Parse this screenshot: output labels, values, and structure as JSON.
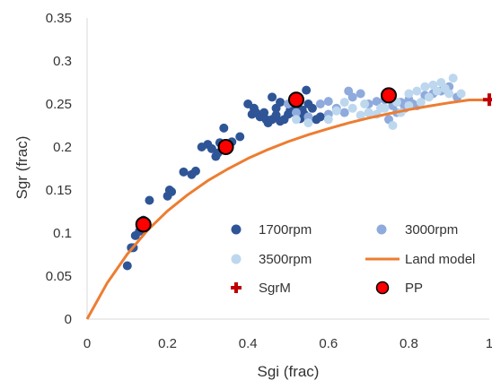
{
  "chart_data": {
    "type": "scatter",
    "xlabel": "Sgi (frac)",
    "ylabel": "Sgr (frac)",
    "xlim": [
      0,
      1
    ],
    "ylim": [
      0,
      0.35
    ],
    "x_ticks": [
      "0",
      "0.2",
      "0.4",
      "0.6",
      "0.8",
      "1"
    ],
    "y_ticks": [
      "0",
      "0.05",
      "0.1",
      "0.15",
      "0.2",
      "0.25",
      "0.3",
      "0.35"
    ],
    "grid": false,
    "legend_position": "bottom-right inside plot, two columns",
    "series": [
      {
        "name": "1700rpm",
        "type": "scatter",
        "color": "#2f5597",
        "points": [
          [
            0.1,
            0.062
          ],
          [
            0.11,
            0.083
          ],
          [
            0.115,
            0.083
          ],
          [
            0.12,
            0.097
          ],
          [
            0.13,
            0.102
          ],
          [
            0.14,
            0.115
          ],
          [
            0.155,
            0.138
          ],
          [
            0.2,
            0.143
          ],
          [
            0.21,
            0.148
          ],
          [
            0.205,
            0.15
          ],
          [
            0.24,
            0.171
          ],
          [
            0.26,
            0.168
          ],
          [
            0.27,
            0.172
          ],
          [
            0.285,
            0.2
          ],
          [
            0.3,
            0.203
          ],
          [
            0.31,
            0.198
          ],
          [
            0.32,
            0.189
          ],
          [
            0.325,
            0.193
          ],
          [
            0.33,
            0.205
          ],
          [
            0.34,
            0.222
          ],
          [
            0.36,
            0.206
          ],
          [
            0.38,
            0.212
          ],
          [
            0.4,
            0.25
          ],
          [
            0.41,
            0.238
          ],
          [
            0.415,
            0.245
          ],
          [
            0.42,
            0.24
          ],
          [
            0.43,
            0.235
          ],
          [
            0.44,
            0.24
          ],
          [
            0.445,
            0.232
          ],
          [
            0.45,
            0.228
          ],
          [
            0.46,
            0.232
          ],
          [
            0.47,
            0.237
          ],
          [
            0.48,
            0.23
          ],
          [
            0.49,
            0.232
          ],
          [
            0.5,
            0.238
          ],
          [
            0.505,
            0.243
          ],
          [
            0.515,
            0.24
          ],
          [
            0.52,
            0.245
          ],
          [
            0.53,
            0.233
          ],
          [
            0.535,
            0.243
          ],
          [
            0.54,
            0.238
          ],
          [
            0.545,
            0.266
          ],
          [
            0.55,
            0.25
          ],
          [
            0.46,
            0.258
          ],
          [
            0.48,
            0.252
          ],
          [
            0.56,
            0.245
          ],
          [
            0.57,
            0.232
          ],
          [
            0.58,
            0.235
          ],
          [
            0.47,
            0.245
          ]
        ]
      },
      {
        "name": "3000rpm",
        "type": "scatter",
        "color": "#8faadc",
        "points": [
          [
            0.5,
            0.25
          ],
          [
            0.52,
            0.24
          ],
          [
            0.55,
            0.235
          ],
          [
            0.58,
            0.25
          ],
          [
            0.6,
            0.253
          ],
          [
            0.62,
            0.245
          ],
          [
            0.64,
            0.24
          ],
          [
            0.66,
            0.258
          ],
          [
            0.68,
            0.262
          ],
          [
            0.7,
            0.25
          ],
          [
            0.72,
            0.253
          ],
          [
            0.74,
            0.255
          ],
          [
            0.76,
            0.248
          ],
          [
            0.78,
            0.252
          ],
          [
            0.8,
            0.255
          ],
          [
            0.82,
            0.248
          ],
          [
            0.84,
            0.26
          ],
          [
            0.86,
            0.262
          ],
          [
            0.88,
            0.265
          ],
          [
            0.9,
            0.27
          ],
          [
            0.92,
            0.258
          ],
          [
            0.75,
            0.232
          ],
          [
            0.77,
            0.24
          ],
          [
            0.79,
            0.245
          ],
          [
            0.81,
            0.25
          ],
          [
            0.65,
            0.265
          ],
          [
            0.6,
            0.238
          ],
          [
            0.7,
            0.24
          ]
        ]
      },
      {
        "name": "3500rpm",
        "type": "scatter",
        "color": "#bdd7ee",
        "points": [
          [
            0.52,
            0.232
          ],
          [
            0.55,
            0.228
          ],
          [
            0.6,
            0.232
          ],
          [
            0.62,
            0.242
          ],
          [
            0.66,
            0.245
          ],
          [
            0.68,
            0.237
          ],
          [
            0.7,
            0.24
          ],
          [
            0.72,
            0.238
          ],
          [
            0.74,
            0.245
          ],
          [
            0.76,
            0.225
          ],
          [
            0.78,
            0.24
          ],
          [
            0.8,
            0.262
          ],
          [
            0.82,
            0.265
          ],
          [
            0.84,
            0.27
          ],
          [
            0.85,
            0.258
          ],
          [
            0.86,
            0.272
          ],
          [
            0.87,
            0.265
          ],
          [
            0.88,
            0.275
          ],
          [
            0.89,
            0.268
          ],
          [
            0.9,
            0.262
          ],
          [
            0.91,
            0.28
          ],
          [
            0.93,
            0.262
          ],
          [
            0.83,
            0.252
          ],
          [
            0.8,
            0.248
          ],
          [
            0.77,
            0.252
          ],
          [
            0.73,
            0.245
          ],
          [
            0.69,
            0.25
          ],
          [
            0.64,
            0.252
          ]
        ]
      },
      {
        "name": "Land model",
        "type": "line",
        "color": "#ed7d31",
        "points": [
          [
            0,
            0
          ],
          [
            0.05,
            0.042
          ],
          [
            0.1,
            0.0755
          ],
          [
            0.15,
            0.1031
          ],
          [
            0.2,
            0.1257
          ],
          [
            0.25,
            0.1445
          ],
          [
            0.3,
            0.1608
          ],
          [
            0.35,
            0.1745
          ],
          [
            0.4,
            0.1867
          ],
          [
            0.45,
            0.1971
          ],
          [
            0.5,
            0.2062
          ],
          [
            0.55,
            0.2143
          ],
          [
            0.6,
            0.2213
          ],
          [
            0.65,
            0.2279
          ],
          [
            0.7,
            0.2336
          ],
          [
            0.75,
            0.2386
          ],
          [
            0.8,
            0.2434
          ],
          [
            0.85,
            0.2475
          ],
          [
            0.9,
            0.2514
          ],
          [
            0.95,
            0.2547
          ],
          [
            1.0,
            0.2547
          ]
        ]
      },
      {
        "name": "SgrM",
        "type": "marker",
        "marker": "plus",
        "color": "#c00000",
        "points": [
          [
            1.0,
            0.255
          ]
        ]
      },
      {
        "name": "PP",
        "type": "scatter",
        "marker": "circle-outlined",
        "color": "#ff0000",
        "points": [
          [
            0.14,
            0.11
          ],
          [
            0.345,
            0.2
          ],
          [
            0.52,
            0.255
          ],
          [
            0.75,
            0.26
          ]
        ]
      }
    ]
  }
}
